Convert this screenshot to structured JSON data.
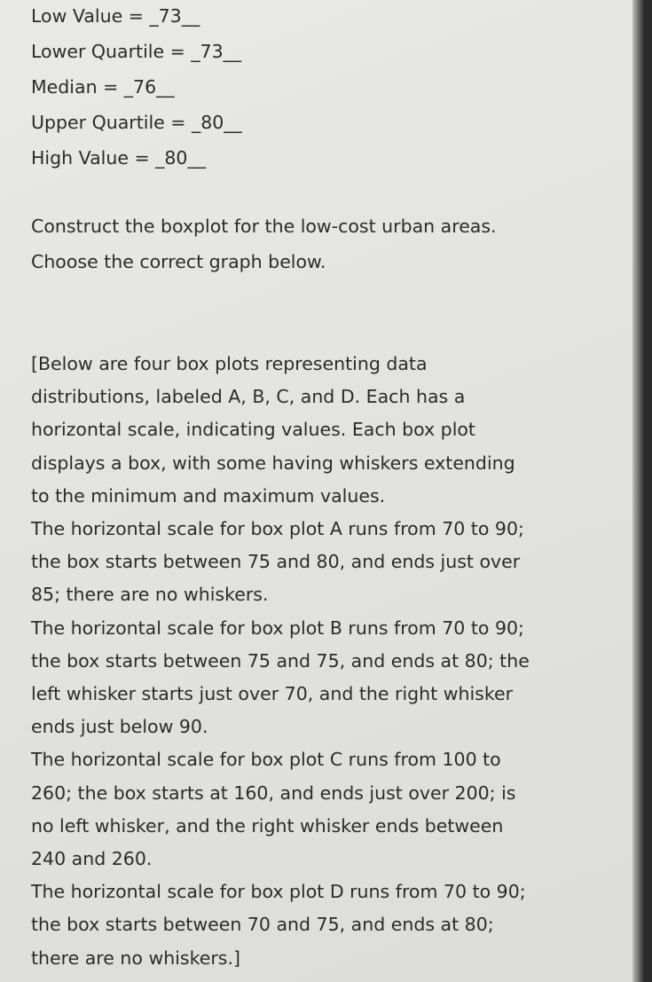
{
  "given": [
    "Low Value = _73__",
    "Lower Quartile = _73__",
    "Median = _76__",
    "Upper Quartile = _80__",
    "High Value = _80__"
  ],
  "instructions": [
    "Construct the boxplot for the low-cost urban areas.",
    "Choose the correct graph below."
  ],
  "description": [
    "[Below are four box plots representing data",
    "distributions, labeled A, B, C, and D. Each has a",
    "horizontal scale, indicating values. Each box plot",
    "displays a box, with some having whiskers extending",
    "to the minimum and maximum values.",
    "The horizontal scale for box plot A runs from 70 to 90;",
    "the box starts between 75 and 80, and ends just over",
    "85; there are no whiskers.",
    "The horizontal scale for box plot B runs from 70 to 90;",
    "the box starts between 75 and 75, and ends at 80; the",
    "left whisker starts just over 70, and the right whisker",
    "ends just below 90.",
    "The horizontal scale for box plot C runs from 100 to",
    "260; the box starts at 160, and ends just over 200; is",
    "no left whisker, and the right whisker ends between",
    "240 and 260.",
    "The horizontal scale for box plot D runs from 70 to 90;",
    "the box starts between 70 and 75, and ends at 80;",
    "there are no whiskers.]"
  ]
}
